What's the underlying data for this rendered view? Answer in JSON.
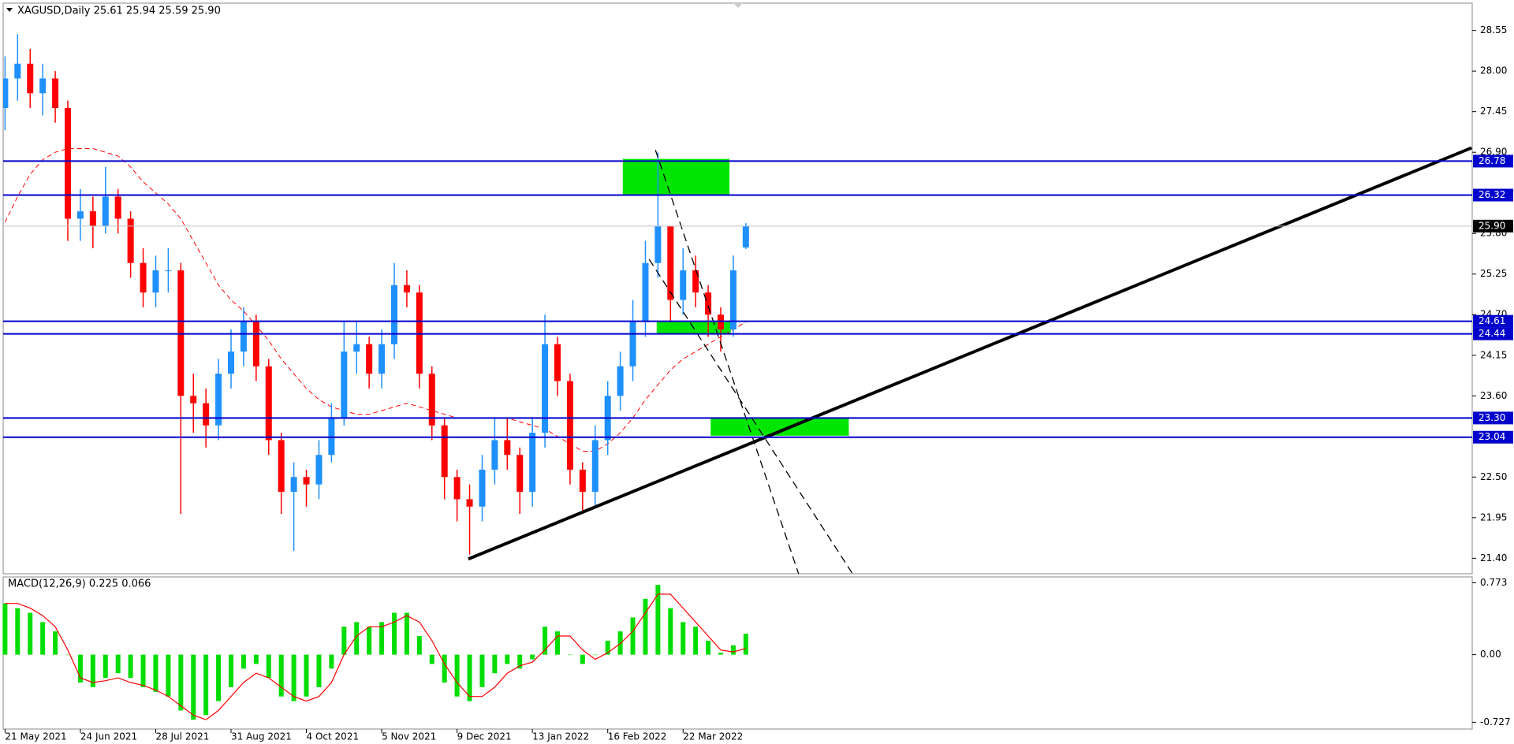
{
  "chart_data": {
    "type": "candlestick",
    "header": "XAGUSD,Daily  25.61 25.94 25.59 25.90",
    "categories": [
      "21 May 2021",
      null,
      null,
      null,
      null,
      null,
      "24 Jun 2021",
      null,
      null,
      null,
      null,
      null,
      "28 Jul 2021",
      null,
      null,
      null,
      null,
      null,
      "31 Aug 2021",
      null,
      null,
      null,
      null,
      null,
      "4 Oct 2021",
      null,
      null,
      null,
      null,
      null,
      "5 Nov 2021",
      null,
      null,
      null,
      null,
      null,
      "9 Dec 2021",
      null,
      null,
      null,
      null,
      null,
      "13 Jan 2022",
      null,
      null,
      null,
      null,
      null,
      "16 Feb 2022",
      null,
      null,
      null,
      null,
      null,
      "22 Mar 2022",
      null,
      null,
      null,
      null,
      null
    ],
    "open": [
      27.5,
      27.9,
      28.1,
      27.7,
      27.9,
      27.5,
      26.0,
      26.1,
      25.9,
      26.3,
      26.0,
      25.4,
      25.0,
      25.3,
      25.3,
      23.6,
      23.5,
      23.2,
      23.9,
      24.2,
      24.6,
      24.0,
      23.0,
      22.3,
      22.5,
      22.4,
      22.8,
      23.3,
      24.2,
      24.3,
      23.9,
      24.3,
      25.1,
      25.0,
      23.9,
      23.2,
      22.5,
      22.2,
      22.1,
      22.6,
      23.0,
      22.8,
      22.3,
      23.1,
      24.3,
      23.8,
      22.6,
      22.3,
      23.0,
      23.6,
      24.0,
      24.6,
      25.4,
      25.9,
      24.9,
      25.3,
      25.0,
      24.7,
      24.5,
      25.61
    ],
    "high": [
      28.2,
      28.5,
      28.3,
      28.1,
      28.0,
      27.6,
      26.4,
      26.3,
      26.7,
      26.4,
      26.1,
      25.6,
      25.5,
      25.6,
      25.4,
      23.9,
      23.7,
      24.1,
      24.5,
      24.8,
      24.7,
      24.1,
      23.1,
      22.7,
      22.6,
      23.0,
      23.5,
      24.6,
      24.6,
      24.4,
      24.5,
      25.4,
      25.3,
      25.1,
      24.0,
      23.3,
      22.6,
      22.4,
      22.8,
      23.3,
      23.3,
      22.9,
      23.3,
      24.7,
      24.4,
      23.9,
      22.7,
      23.2,
      23.8,
      24.2,
      24.9,
      25.7,
      26.9,
      25.9,
      25.6,
      25.5,
      25.1,
      24.8,
      25.5,
      25.94
    ],
    "low": [
      27.2,
      27.6,
      27.5,
      27.4,
      27.3,
      25.7,
      25.7,
      25.6,
      25.8,
      25.8,
      25.2,
      24.8,
      24.8,
      25.0,
      22.0,
      23.1,
      22.9,
      23.0,
      23.7,
      24.0,
      23.8,
      22.8,
      22.0,
      21.5,
      22.1,
      22.2,
      22.7,
      23.2,
      23.9,
      23.7,
      23.7,
      24.1,
      24.8,
      23.7,
      23.0,
      22.2,
      21.9,
      21.45,
      21.9,
      22.4,
      22.6,
      22.0,
      22.1,
      22.9,
      23.6,
      22.4,
      22.0,
      22.1,
      22.8,
      23.4,
      23.8,
      24.4,
      25.2,
      24.6,
      24.7,
      24.8,
      24.4,
      24.2,
      24.4,
      25.59
    ],
    "close": [
      27.9,
      28.1,
      27.7,
      27.9,
      27.5,
      26.0,
      26.1,
      25.9,
      26.3,
      26.0,
      25.4,
      25.0,
      25.3,
      25.3,
      23.6,
      23.5,
      23.2,
      23.9,
      24.2,
      24.6,
      24.0,
      23.0,
      22.3,
      22.5,
      22.4,
      22.8,
      23.3,
      24.2,
      24.3,
      23.9,
      24.3,
      25.1,
      25.0,
      23.9,
      23.2,
      22.5,
      22.2,
      22.1,
      22.6,
      23.0,
      22.8,
      22.3,
      23.1,
      24.3,
      23.8,
      22.6,
      22.3,
      23.0,
      23.6,
      24.0,
      24.6,
      25.4,
      25.9,
      24.9,
      25.3,
      25.0,
      24.7,
      24.5,
      25.3,
      25.9
    ],
    "up_color": "#1e90ff",
    "down_color": "#ff0000",
    "ma": {
      "color": "#ff0000",
      "values": [
        25.95,
        26.3,
        26.6,
        26.8,
        26.9,
        26.95,
        26.95,
        26.95,
        26.9,
        26.85,
        26.7,
        26.5,
        26.35,
        26.2,
        26.0,
        25.7,
        25.4,
        25.1,
        24.9,
        24.75,
        24.55,
        24.35,
        24.1,
        23.9,
        23.7,
        23.55,
        23.45,
        23.4,
        23.35,
        23.35,
        23.4,
        23.45,
        23.5,
        23.45,
        23.4,
        23.35,
        23.3,
        23.3,
        23.3,
        23.3,
        23.3,
        23.25,
        23.2,
        23.15,
        23.05,
        22.95,
        22.85,
        22.85,
        22.95,
        23.1,
        23.3,
        23.55,
        23.75,
        23.95,
        24.1,
        24.2,
        24.3,
        24.4,
        24.5,
        24.6
      ]
    },
    "xlim": [
      -0.15,
      116.85
    ],
    "ylim": [
      21.19,
      28.92
    ],
    "yticks": [
      28.55,
      {
        "value": 28.0,
        "label": "28.00"
      },
      27.45,
      {
        "value": 26.9,
        "label": "26.90"
      },
      {
        "value": 25.8,
        "label": "25.80"
      },
      25.25,
      {
        "value": 24.7,
        "label": "24.70"
      },
      24.15,
      {
        "value": 23.6,
        "label": "23.60"
      },
      {
        "value": 22.5,
        "label": "22.50"
      },
      21.95,
      {
        "value": 21.4,
        "label": "21.40"
      }
    ],
    "levels": [
      26.78,
      26.32,
      24.61,
      24.44,
      {
        "value": 23.3,
        "label": "23.30"
      },
      23.04
    ],
    "level_color": "#0000cc",
    "current": {
      "value": 25.9,
      "label": "25.90"
    },
    "trendlines": [
      {
        "x": [
          36.9,
          116.8
        ],
        "y": [
          21.39,
          26.96
        ],
        "style": "solid"
      },
      {
        "x": [
          51.8,
          63.2
        ],
        "y": [
          26.93,
          21.19
        ],
        "style": "dashed"
      },
      {
        "x": [
          51.3,
          67.5
        ],
        "y": [
          25.45,
          21.19
        ],
        "style": "dashed"
      }
    ],
    "zones": [
      {
        "x": [
          49.2,
          57.7
        ],
        "y": [
          26.81,
          26.33
        ]
      },
      {
        "x": [
          51.9,
          57.8
        ],
        "y": [
          24.6,
          24.44
        ]
      },
      {
        "x": [
          56.2,
          67.2
        ],
        "y": [
          23.3,
          23.06
        ]
      }
    ],
    "zone_color": "#00e600",
    "macd": {
      "title": "MACD(12,26,9) 0.225 0.066",
      "hist_color": "#00dd00",
      "signal_color": "#ff0000",
      "ylim": [
        -0.8,
        0.836
      ],
      "yticks": [
        0.773,
        {
          "value": 0,
          "label": "0.00"
        },
        -0.727
      ],
      "histogram": [
        0.55,
        0.5,
        0.45,
        0.35,
        0.25,
        0.0,
        -0.3,
        -0.35,
        -0.25,
        -0.2,
        -0.25,
        -0.35,
        -0.4,
        -0.45,
        -0.6,
        -0.7,
        -0.65,
        -0.5,
        -0.35,
        -0.15,
        -0.1,
        -0.25,
        -0.45,
        -0.5,
        -0.45,
        -0.35,
        -0.15,
        0.3,
        0.35,
        0.3,
        0.35,
        0.45,
        0.45,
        0.2,
        -0.1,
        -0.3,
        -0.45,
        -0.5,
        -0.35,
        -0.2,
        -0.1,
        -0.15,
        -0.05,
        0.3,
        0.25,
        0.0,
        -0.1,
        0.0,
        0.15,
        0.25,
        0.4,
        0.6,
        0.75,
        0.5,
        0.35,
        0.3,
        0.15,
        0.02,
        0.1,
        0.225
      ],
      "signal": [
        0.55,
        0.55,
        0.5,
        0.42,
        0.3,
        0.05,
        -0.25,
        -0.3,
        -0.28,
        -0.25,
        -0.3,
        -0.33,
        -0.38,
        -0.45,
        -0.55,
        -0.65,
        -0.7,
        -0.6,
        -0.45,
        -0.3,
        -0.2,
        -0.25,
        -0.35,
        -0.45,
        -0.5,
        -0.45,
        -0.3,
        0.0,
        0.2,
        0.3,
        0.3,
        0.35,
        0.42,
        0.35,
        0.15,
        -0.1,
        -0.3,
        -0.45,
        -0.45,
        -0.35,
        -0.2,
        -0.12,
        -0.08,
        0.05,
        0.2,
        0.2,
        0.05,
        -0.05,
        0.02,
        0.12,
        0.25,
        0.45,
        0.65,
        0.65,
        0.5,
        0.35,
        0.2,
        0.05,
        0.03,
        0.066
      ]
    }
  }
}
